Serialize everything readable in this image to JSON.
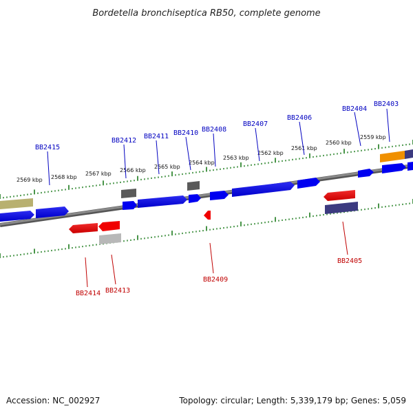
{
  "title": "Bordetella bronchiseptica RB50, complete genome",
  "footer": {
    "accession": "Accession: NC_002927",
    "summary": "Topology: circular; Length: 5,339,179 bp; Genes: 5,059"
  },
  "colors": {
    "forward_label": "#0000c0",
    "reverse_label": "#c00000",
    "backbone": "#7a7a7a",
    "tick": "#1a7a1a",
    "cds_blue": "#0000f0",
    "cds_red": "#f00000",
    "cds_gray": "#5a5a5a",
    "cds_lightgray": "#b8b8b8",
    "cds_navy": "#3c3a80",
    "cds_olive": "#b8b070",
    "cds_orange": "#f09000"
  },
  "scale_labels": [
    "2559 kbp",
    "2560 kbp",
    "2561 kbp",
    "2562 kbp",
    "2563 kbp",
    "2564 kbp",
    "2565 kbp",
    "2566 kbp",
    "2567 kbp",
    "2568 kbp",
    "2569 kbp"
  ],
  "forward_genes": [
    "BB2403",
    "BB2404",
    "BB2406",
    "BB2407",
    "BB2408",
    "BB2410",
    "BB2411",
    "BB2412",
    "BB2415"
  ],
  "reverse_genes": [
    "BB2405",
    "BB2409",
    "BB2413",
    "BB2414"
  ]
}
